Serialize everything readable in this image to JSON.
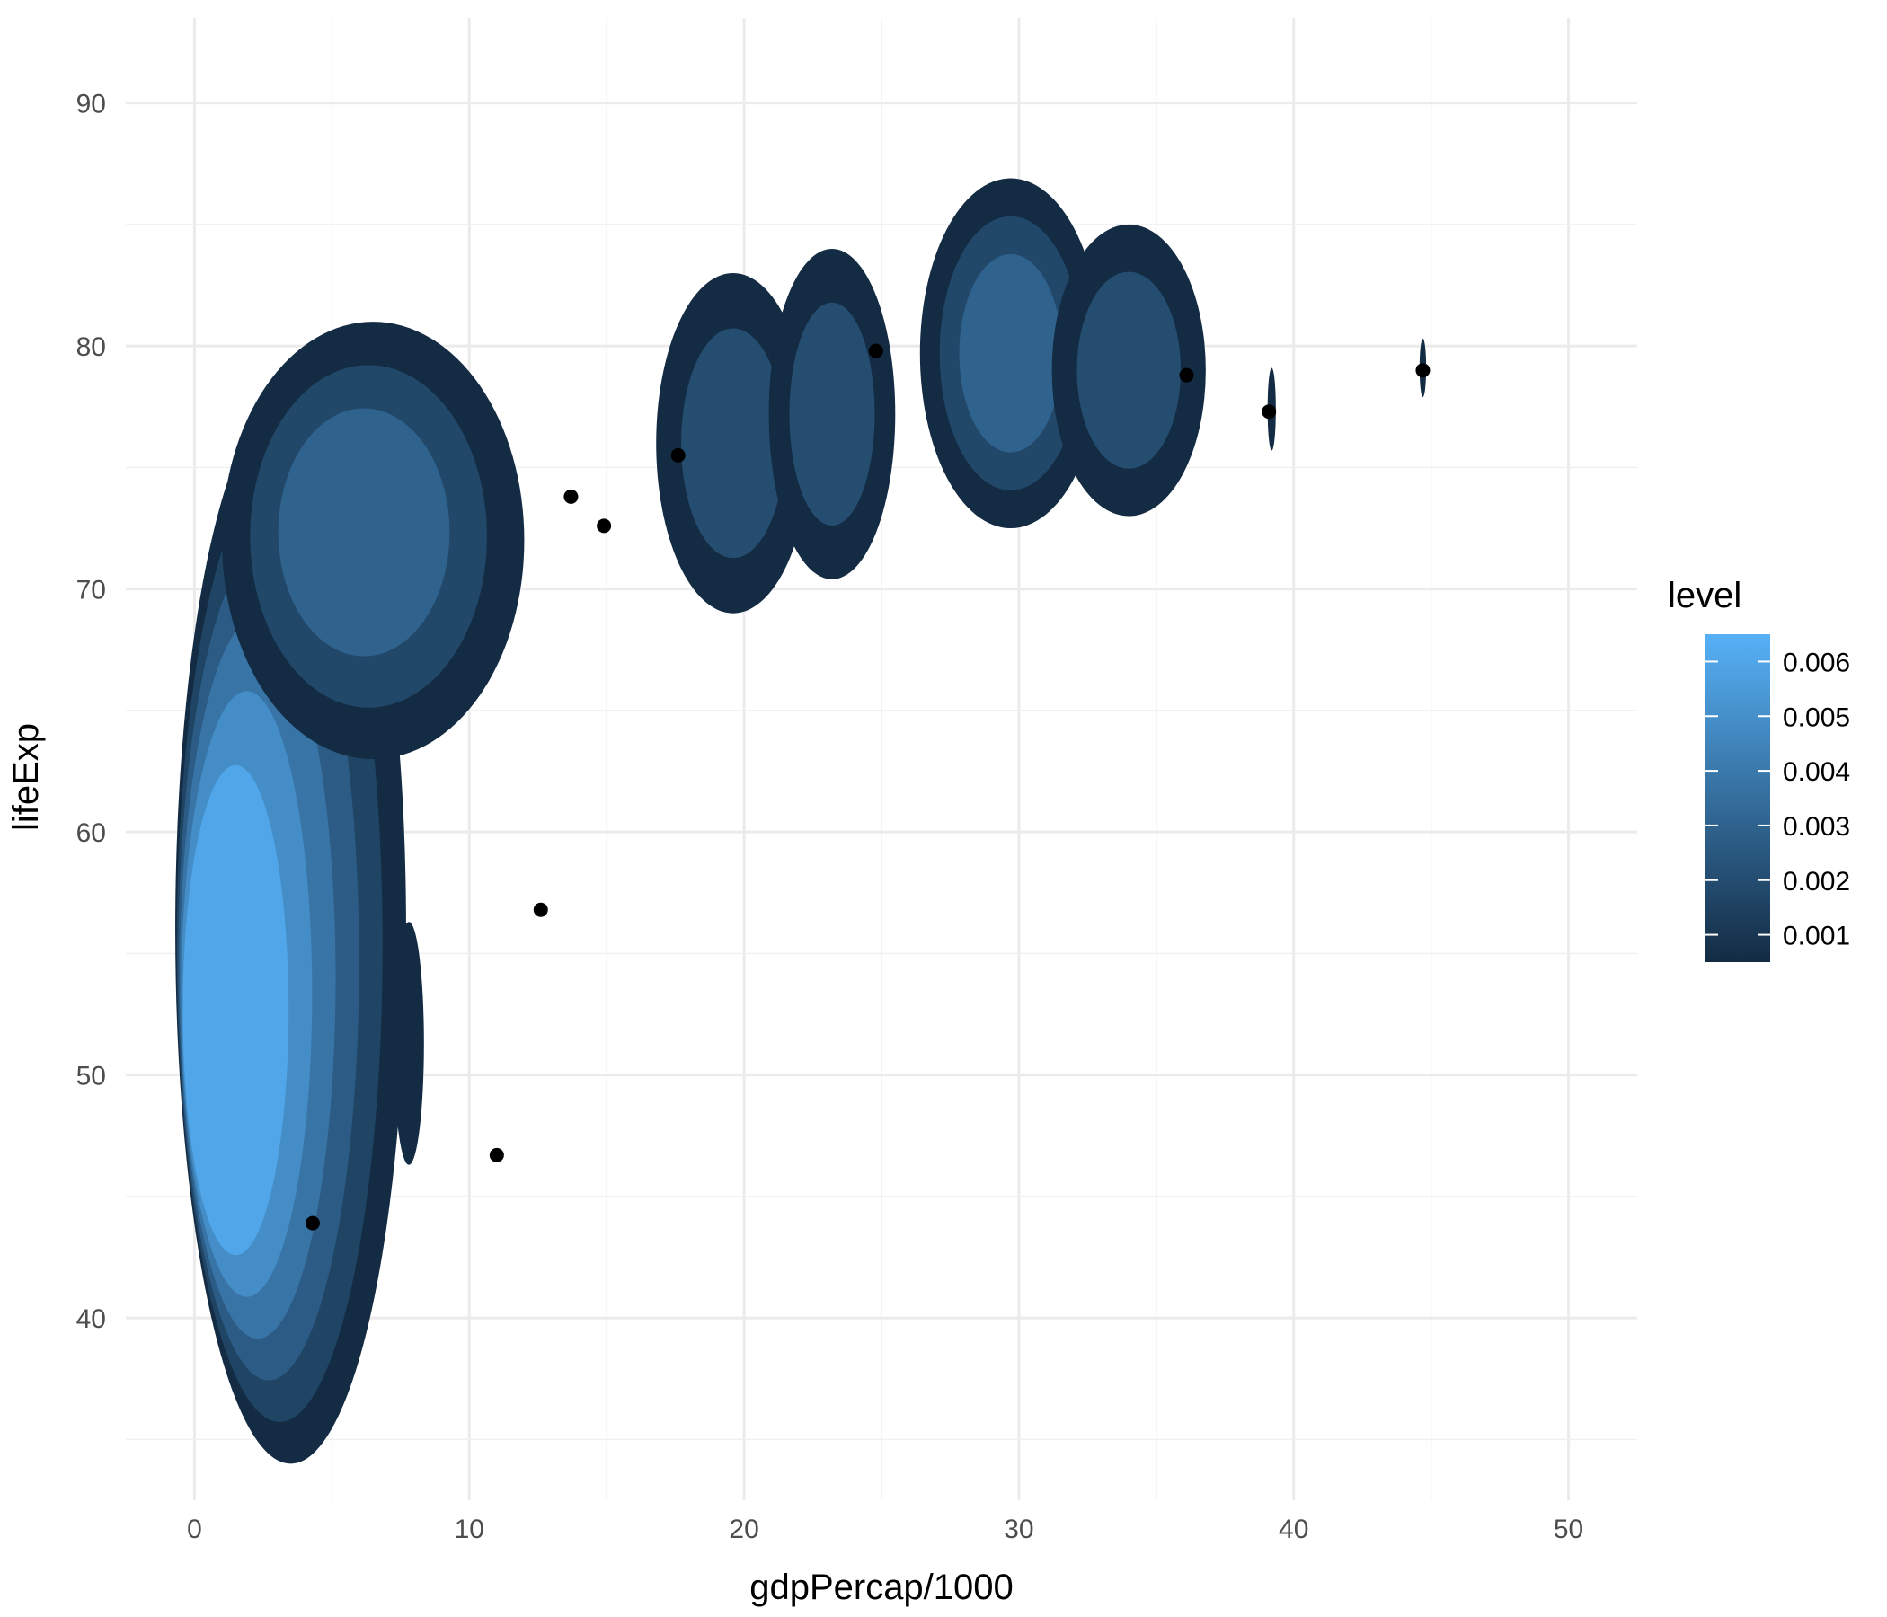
{
  "chart_data": {
    "type": "contour",
    "xlabel": "gdpPercap/1000",
    "ylabel": "lifeExp",
    "xlim": [
      -2.5,
      52.5
    ],
    "ylim": [
      32.5,
      93.5
    ],
    "x_ticks": [
      0,
      10,
      20,
      30,
      40,
      50
    ],
    "x_tick_labels": [
      "0",
      "10",
      "20",
      "30",
      "40",
      "50"
    ],
    "y_ticks": [
      40,
      50,
      60,
      70,
      80,
      90
    ],
    "y_tick_labels": [
      "40",
      "50",
      "60",
      "70",
      "80",
      "90"
    ],
    "grid": true,
    "legend": {
      "title": "level",
      "position": "right",
      "range": [
        0.0005,
        0.0065
      ],
      "breaks": [
        0.001,
        0.002,
        0.003,
        0.004,
        0.005,
        0.006
      ],
      "labels": [
        "0.001",
        "0.002",
        "0.003",
        "0.004",
        "0.005",
        "0.006"
      ],
      "color_low": "#132B43",
      "color_high": "#56B1F7"
    },
    "density_regions": [
      {
        "cx": 3.5,
        "cy": 56,
        "rx": 4.2,
        "ry": 22,
        "peak_level": 0.006,
        "peak_x": 1.1,
        "peak_y": 52
      },
      {
        "cx": 6.5,
        "cy": 72,
        "rx": 5.5,
        "ry": 9,
        "peak_level": 0.003,
        "peak_x": 6,
        "peak_y": 72.5
      },
      {
        "cx": 7.8,
        "cy": 51.3,
        "rx": 0.55,
        "ry": 5,
        "peak_level": 0.001
      },
      {
        "cx": 19.6,
        "cy": 76,
        "rx": 2.8,
        "ry": 7,
        "peak_level": 0.002
      },
      {
        "cx": 23.2,
        "cy": 77.2,
        "rx": 2.3,
        "ry": 6.8,
        "peak_level": 0.002
      },
      {
        "cx": 29.7,
        "cy": 79.7,
        "rx": 3.3,
        "ry": 7.2,
        "peak_level": 0.003
      },
      {
        "cx": 34,
        "cy": 79,
        "rx": 2.8,
        "ry": 6,
        "peak_level": 0.002
      },
      {
        "cx": 39.2,
        "cy": 77.4,
        "rx": 0.15,
        "ry": 1.7,
        "peak_level": 0.001
      },
      {
        "cx": 44.7,
        "cy": 79.1,
        "rx": 0.12,
        "ry": 1.2,
        "peak_level": 0.001
      }
    ],
    "points": [
      {
        "x": 4.3,
        "y": 43.9
      },
      {
        "x": 11,
        "y": 46.7
      },
      {
        "x": 12.6,
        "y": 56.8
      },
      {
        "x": 13.7,
        "y": 73.8
      },
      {
        "x": 14.9,
        "y": 72.6
      },
      {
        "x": 17.6,
        "y": 75.5
      },
      {
        "x": 24.8,
        "y": 79.8
      },
      {
        "x": 36.1,
        "y": 78.8
      },
      {
        "x": 39.1,
        "y": 77.3
      },
      {
        "x": 44.7,
        "y": 79
      }
    ]
  }
}
